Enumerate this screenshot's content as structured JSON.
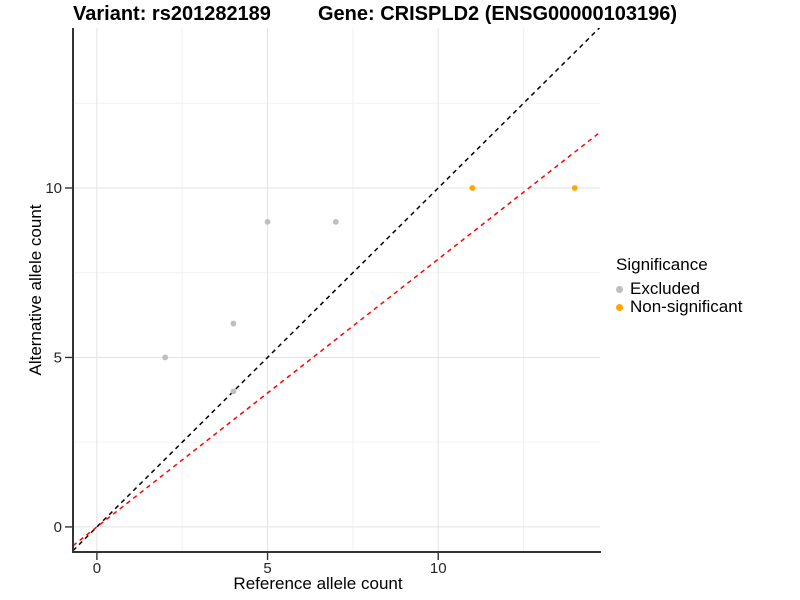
{
  "header": {
    "variant_title": "Variant: rs201282189",
    "gene_title": "Gene: CRISPLD2 (ENSG00000103196)"
  },
  "axes": {
    "x": {
      "label": "Reference allele count"
    },
    "y": {
      "label": "Alternative allele count"
    }
  },
  "legend": {
    "title": "Significance",
    "items": [
      {
        "label": "Excluded",
        "color": "#bebebe"
      },
      {
        "label": "Non-significant",
        "color": "#ffa500"
      }
    ]
  },
  "chart_data": {
    "type": "scatter",
    "title": "Variant: rs201282189 / Gene: CRISPLD2 (ENSG00000103196)",
    "xlabel": "Reference allele count",
    "ylabel": "Alternative allele count",
    "xlim": [
      -0.7,
      14.74
    ],
    "ylim": [
      -0.74,
      14.72
    ],
    "x_major_ticks": [
      0,
      5,
      10
    ],
    "x_minor_ticks": [
      2.5,
      7.5,
      12.5
    ],
    "y_major_ticks": [
      0,
      5,
      10
    ],
    "y_minor_ticks": [
      2.5,
      7.5,
      12.5
    ],
    "grid": true,
    "legend_position": "right",
    "series": [
      {
        "name": "Excluded",
        "color": "#bebebe",
        "points": [
          [
            2,
            5
          ],
          [
            4,
            4
          ],
          [
            4,
            6
          ],
          [
            5,
            9
          ],
          [
            7,
            9
          ]
        ]
      },
      {
        "name": "Non-significant",
        "color": "#ffa500",
        "points": [
          [
            11,
            10
          ],
          [
            14,
            10
          ]
        ]
      }
    ],
    "reference_lines": [
      {
        "name": "identity",
        "slope": 1,
        "intercept": 0,
        "color": "#000000",
        "style": "dashed"
      },
      {
        "name": "allelic-ratio",
        "slope": 0.79,
        "intercept": 0,
        "color": "#ff0000",
        "style": "dashed"
      }
    ]
  },
  "style_colors": {
    "grid_major": "#e3e3e3",
    "grid_minor": "#f1f1f1",
    "axis_line": "#333333",
    "tick_label": "#262626"
  }
}
